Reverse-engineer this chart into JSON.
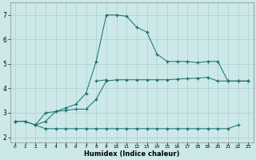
{
  "xlabel": "Humidex (Indice chaleur)",
  "xlim": [
    -0.5,
    23.5
  ],
  "ylim": [
    1.8,
    7.5
  ],
  "xticks": [
    0,
    1,
    2,
    3,
    4,
    5,
    6,
    7,
    8,
    9,
    10,
    11,
    12,
    13,
    14,
    15,
    16,
    17,
    18,
    19,
    20,
    21,
    22,
    23
  ],
  "yticks": [
    2,
    3,
    4,
    5,
    6,
    7
  ],
  "bg_color": "#cce8e8",
  "line_color": "#1a6b6b",
  "grid_major_color": "#aad0d0",
  "grid_minor_color": "#bddada",
  "line1_x": [
    0,
    1,
    2,
    3,
    4,
    5,
    6,
    7,
    8,
    9,
    10,
    11,
    12,
    13,
    14,
    15,
    16,
    17,
    18,
    19,
    20,
    21,
    22
  ],
  "line1_y": [
    2.65,
    2.65,
    2.5,
    2.35,
    2.35,
    2.35,
    2.35,
    2.35,
    2.35,
    2.35,
    2.35,
    2.35,
    2.35,
    2.35,
    2.35,
    2.35,
    2.35,
    2.35,
    2.35,
    2.35,
    2.35,
    2.35,
    2.5
  ],
  "line2_x": [
    0,
    1,
    2,
    3,
    4,
    5,
    6,
    7,
    8,
    9,
    10,
    11,
    12,
    13,
    14,
    15,
    16,
    17,
    18,
    19,
    20,
    21,
    22,
    23
  ],
  "line2_y": [
    2.65,
    2.65,
    2.5,
    2.65,
    3.05,
    3.1,
    3.15,
    3.15,
    3.55,
    4.3,
    4.35,
    4.35,
    4.35,
    4.35,
    4.35,
    4.35,
    4.38,
    4.4,
    4.42,
    4.45,
    4.3,
    4.3,
    4.3,
    4.3
  ],
  "line3_x": [
    2,
    3,
    4,
    5,
    6,
    7,
    8,
    9,
    10,
    11,
    12,
    13,
    14,
    15,
    16,
    17,
    18,
    19,
    20,
    21,
    22,
    23
  ],
  "line3_y": [
    2.5,
    3.0,
    3.05,
    3.2,
    3.35,
    3.8,
    5.1,
    7.0,
    7.0,
    6.95,
    6.5,
    6.3,
    5.4,
    5.1,
    5.1,
    5.1,
    5.05,
    5.1,
    5.1,
    4.3,
    4.3,
    4.3
  ],
  "line4_x": [
    8,
    9
  ],
  "line4_y": [
    4.3,
    4.35
  ],
  "figsize": [
    3.2,
    2.0
  ],
  "dpi": 100
}
